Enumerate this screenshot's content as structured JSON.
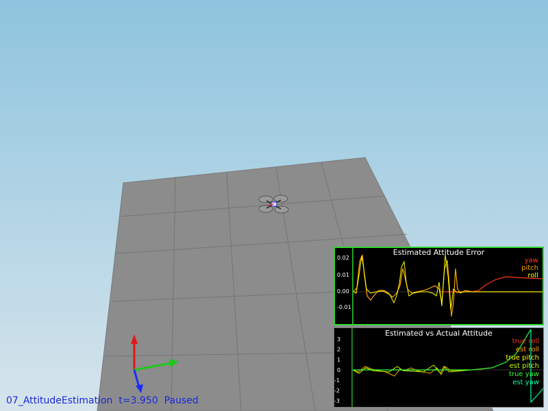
{
  "status": {
    "scenario": "07_AttitudeEstimation",
    "time": "t=3.950",
    "state": "Paused"
  },
  "plots": [
    {
      "title": "Estimated Attitude Error",
      "yticks": [
        "0.02",
        "0.01",
        "0.00",
        "-0.01"
      ],
      "legend": [
        {
          "label": "yaw",
          "color": "#ff3b1a"
        },
        {
          "label": "pitch",
          "color": "#ffa500"
        },
        {
          "label": "roll",
          "color": "#ffff00"
        }
      ]
    },
    {
      "title": "Estimated vs Actual Attitude",
      "yticks": [
        "3",
        "2",
        "1",
        "0",
        "-1",
        "-2",
        "-3"
      ],
      "legend": [
        {
          "label": "true roll",
          "color": "#ff3b1a"
        },
        {
          "label": "est roll",
          "color": "#ffa500"
        },
        {
          "label": "true pitch",
          "color": "#ffff00"
        },
        {
          "label": "est pitch",
          "color": "#c8ff00"
        },
        {
          "label": "true yaw",
          "color": "#33ff33"
        },
        {
          "label": "est yaw",
          "color": "#00ffaa"
        }
      ]
    }
  ],
  "colors": {
    "sky_top": "#8ec4de",
    "sky_bottom": "#d6e4ec",
    "ground": "#8a8a8a",
    "grid": "#777777",
    "plot1_border": "#2fd82f",
    "status_text": "#1a28d8"
  },
  "axes_gizmo": {
    "x_color": "#1ec81e",
    "y_color": "#1a2cff",
    "z_color": "#e01818"
  }
}
